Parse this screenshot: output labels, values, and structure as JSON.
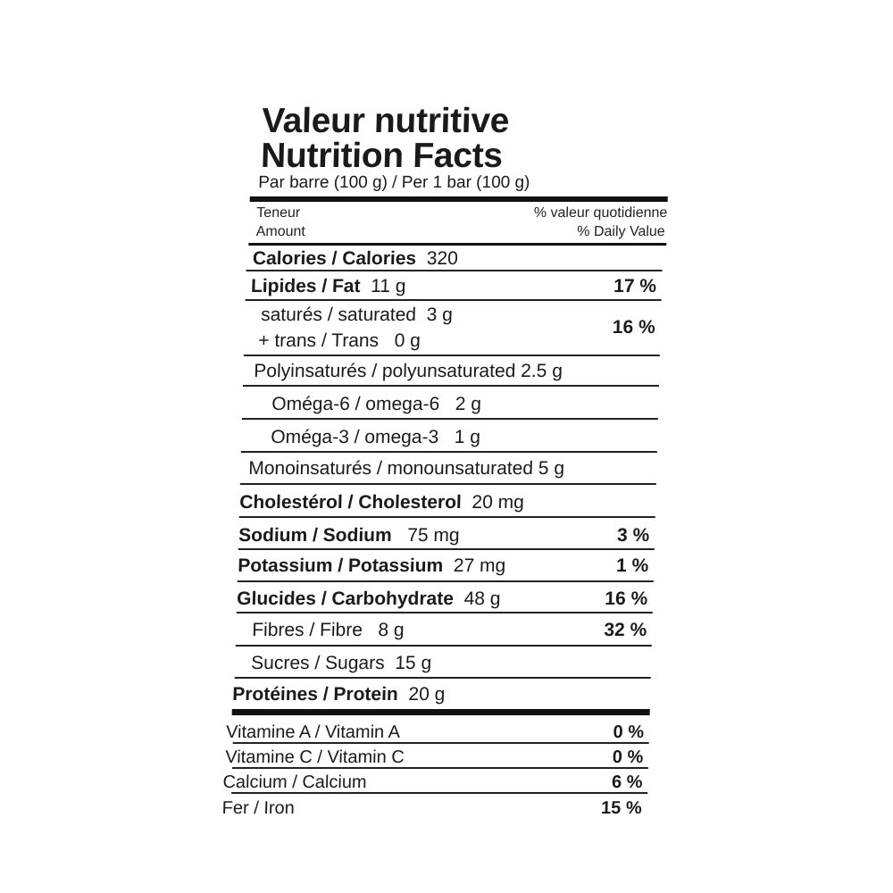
{
  "header": {
    "title_fr": "Valeur nutritive",
    "title_en": "Nutrition Facts",
    "serving": "Par barre (100 g) / Per 1 bar (100 g)"
  },
  "columns": {
    "amount_fr": "Teneur",
    "amount_en": "Amount",
    "dv_fr": "% valeur quotidienne",
    "dv_en": "% Daily Value"
  },
  "nutrients": [
    {
      "name": "Calories / Calories",
      "amount": "320",
      "dv": ""
    },
    {
      "name": "Lipides / Fat",
      "amount": "11 g",
      "dv": "17 %"
    },
    {
      "name": "saturés / saturated",
      "amount": "3 g",
      "name2": "+ trans / Trans",
      "amount2": "0 g",
      "dv": "16 %"
    },
    {
      "name": "Polyinsaturés / polyunsaturated",
      "amount": "2.5 g",
      "dv": ""
    },
    {
      "name": "Oméga-6 / omega-6",
      "amount": "2 g",
      "dv": ""
    },
    {
      "name": "Oméga-3 / omega-3",
      "amount": "1 g",
      "dv": ""
    },
    {
      "name": "Monoinsaturés / monounsaturated",
      "amount": "5 g",
      "dv": ""
    },
    {
      "name": "Cholestérol / Cholesterol",
      "amount": "20 mg",
      "dv": ""
    },
    {
      "name": "Sodium / Sodium",
      "amount": "75 mg",
      "dv": "3 %"
    },
    {
      "name": "Potassium / Potassium",
      "amount": "27 mg",
      "dv": "1 %"
    },
    {
      "name": "Glucides / Carbohydrate",
      "amount": "48 g",
      "dv": "16 %"
    },
    {
      "name": "Fibres / Fibre",
      "amount": "8 g",
      "dv": "32 %"
    },
    {
      "name": "Sucres / Sugars",
      "amount": "15 g",
      "dv": ""
    },
    {
      "name": "Protéines / Protein",
      "amount": "20 g",
      "dv": ""
    }
  ],
  "vitamins": [
    {
      "name": "Vitamine A / Vitamin A",
      "dv": "0 %"
    },
    {
      "name": "Vitamine C / Vitamin C",
      "dv": "0 %"
    },
    {
      "name": "Calcium / Calcium",
      "dv": "6 %"
    },
    {
      "name": "Fer / Iron",
      "dv": "15 %"
    }
  ]
}
